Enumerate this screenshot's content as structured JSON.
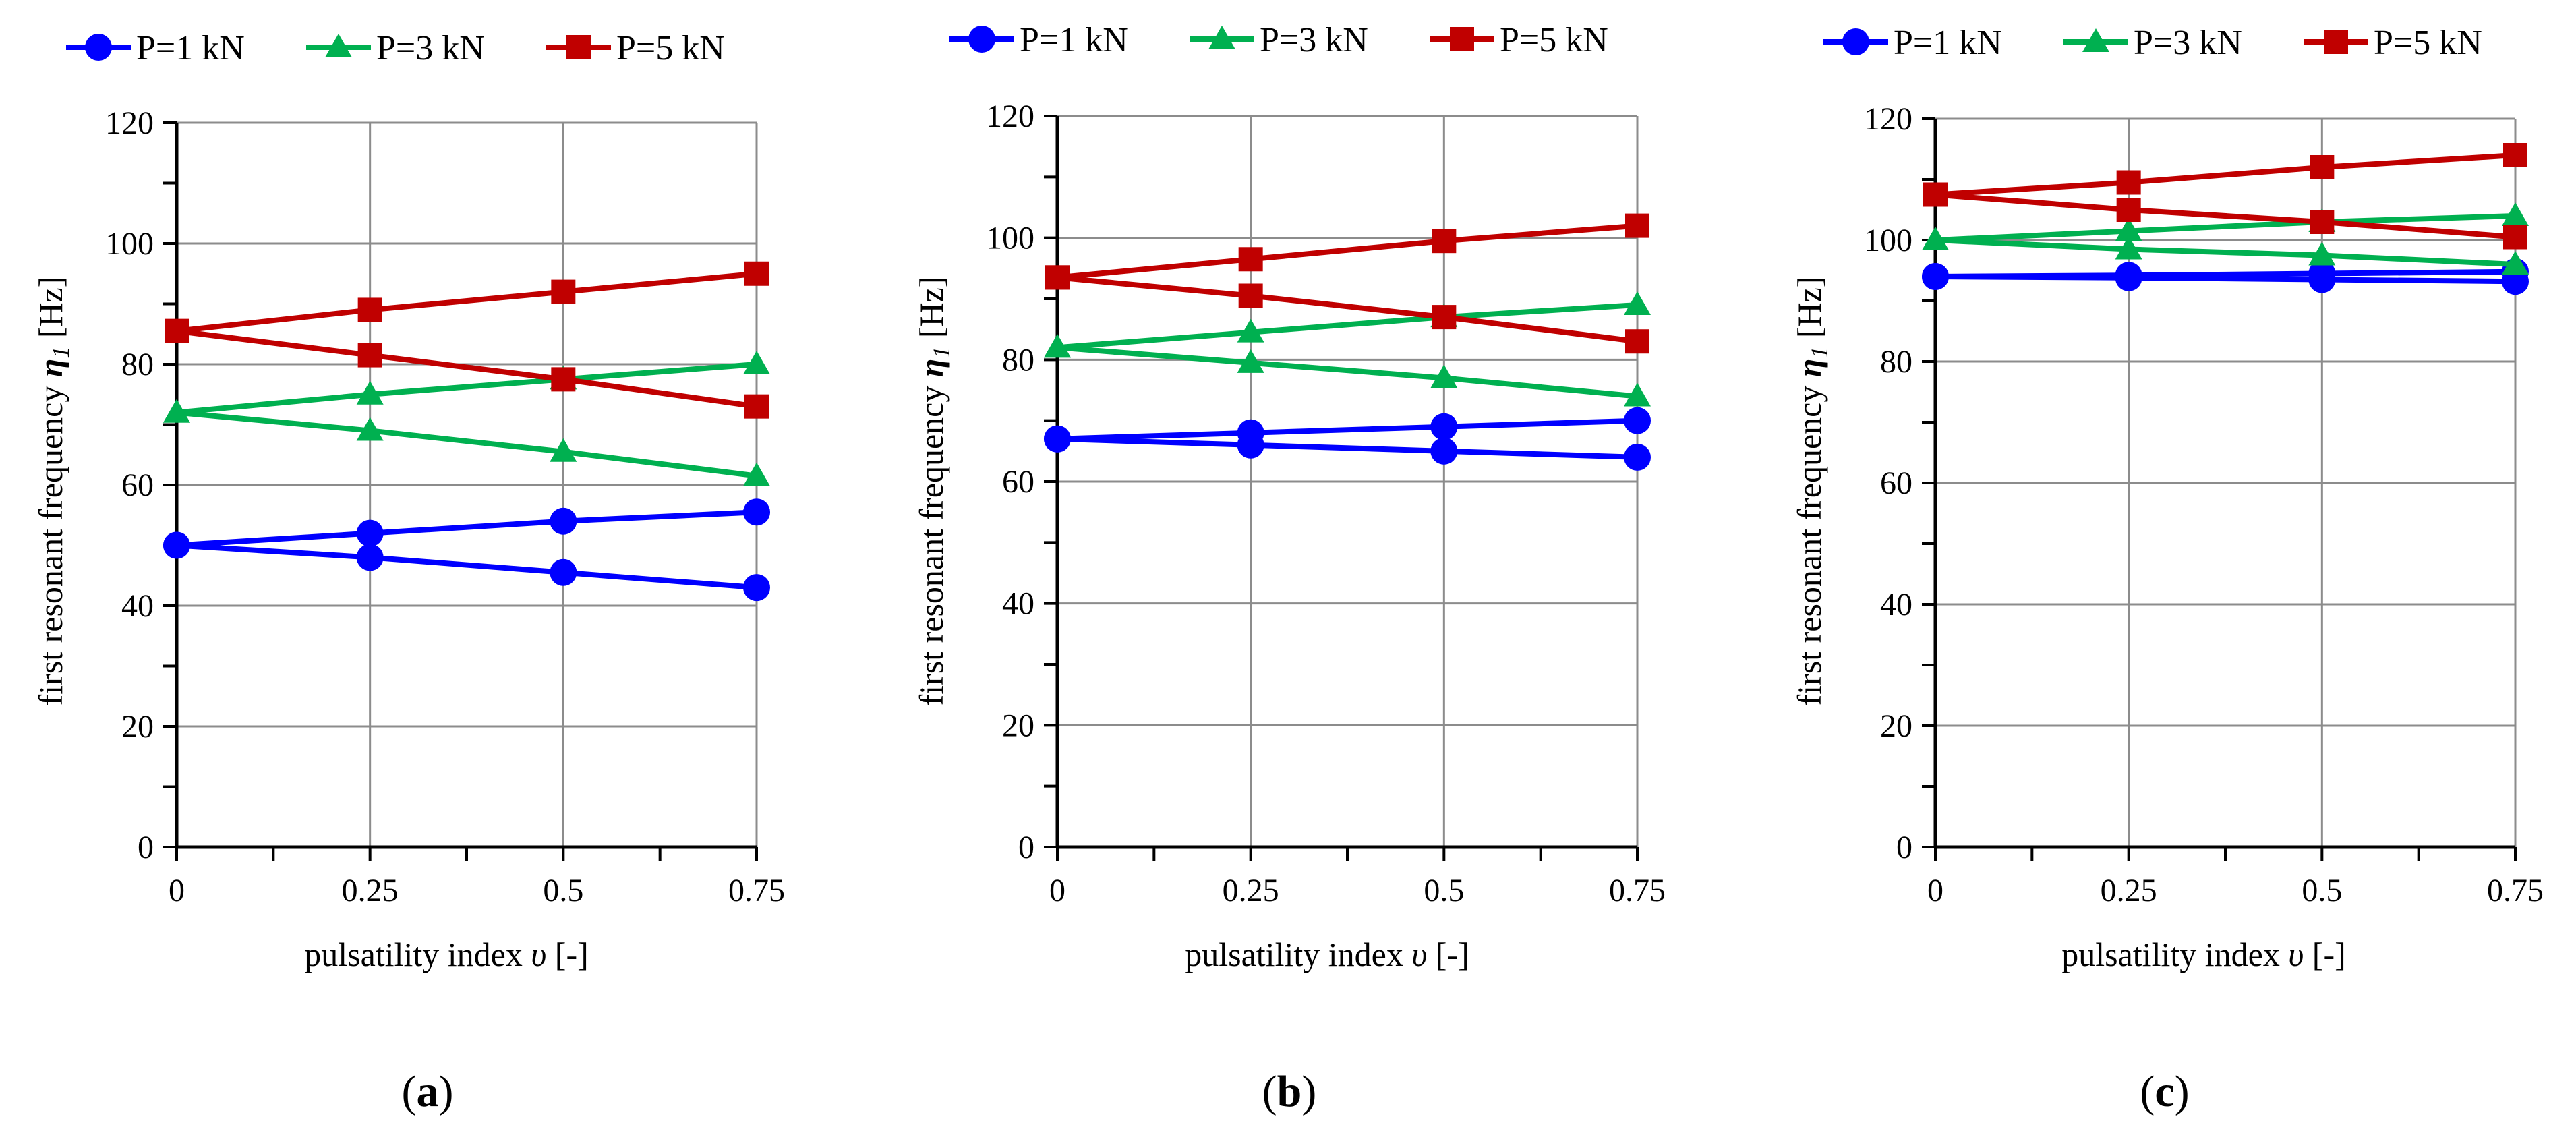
{
  "legend": [
    {
      "label": "P=1 kN",
      "color": "#0000ff",
      "marker": "circle"
    },
    {
      "label": "P=3 kN",
      "color": "#00b050",
      "marker": "triangle"
    },
    {
      "label": "P=5 kN",
      "color": "#c00000",
      "marker": "square"
    }
  ],
  "panels": [
    {
      "open": "(",
      "letter": "a",
      "close": ")"
    },
    {
      "open": "(",
      "letter": "b",
      "close": ")"
    },
    {
      "open": "(",
      "letter": "c",
      "close": ")"
    }
  ],
  "axis_text": {
    "ylabel_main": "first resonant frequency ",
    "ylabel_symbol": "η",
    "ylabel_sub": "1",
    "ylabel_unit": " [Hz]",
    "xlabel_main": "pulsatility index  ",
    "xlabel_symbol": "υ",
    "xlabel_unit": " [-]"
  },
  "chart_data": [
    {
      "type": "line",
      "panel": "a",
      "x": [
        0,
        0.25,
        0.5,
        0.75
      ],
      "xticks": [
        "0",
        "0.25",
        "0.5",
        "0.75"
      ],
      "yticks": [
        "0",
        "20",
        "40",
        "60",
        "80",
        "100",
        "120"
      ],
      "ylim": [
        0,
        120
      ],
      "grid": true,
      "series": [
        {
          "name": "P=1 kN",
          "values": [
            50,
            52,
            54,
            55.5
          ]
        },
        {
          "name": "P=1 kN",
          "values": [
            50,
            48,
            45.5,
            43
          ]
        },
        {
          "name": "P=3 kN",
          "values": [
            72,
            75,
            77.5,
            80
          ]
        },
        {
          "name": "P=3 kN",
          "values": [
            72,
            69,
            65.5,
            61.5
          ]
        },
        {
          "name": "P=5 kN",
          "values": [
            85.5,
            89,
            92,
            95
          ]
        },
        {
          "name": "P=5 kN",
          "values": [
            85.5,
            81.5,
            77.5,
            73
          ]
        }
      ]
    },
    {
      "type": "line",
      "panel": "b",
      "x": [
        0,
        0.25,
        0.5,
        0.75
      ],
      "xticks": [
        "0",
        "0.25",
        "0.5",
        "0.75"
      ],
      "yticks": [
        "0",
        "20",
        "40",
        "60",
        "80",
        "100",
        "120"
      ],
      "ylim": [
        0,
        120
      ],
      "grid": true,
      "series": [
        {
          "name": "P=1 kN",
          "values": [
            67,
            68,
            69,
            70
          ]
        },
        {
          "name": "P=1 kN",
          "values": [
            67,
            66,
            65,
            64
          ]
        },
        {
          "name": "P=3 kN",
          "values": [
            82,
            84.5,
            87,
            89
          ]
        },
        {
          "name": "P=3 kN",
          "values": [
            82,
            79.5,
            77,
            74
          ]
        },
        {
          "name": "P=5 kN",
          "values": [
            93.5,
            96.5,
            99.5,
            102
          ]
        },
        {
          "name": "P=5 kN",
          "values": [
            93.5,
            90.5,
            87,
            83
          ]
        }
      ]
    },
    {
      "type": "line",
      "panel": "c",
      "x": [
        0,
        0.25,
        0.5,
        0.75
      ],
      "xticks": [
        "0",
        "0.25",
        "0.5",
        "0.75"
      ],
      "yticks": [
        "0",
        "20",
        "40",
        "60",
        "80",
        "100",
        "120"
      ],
      "ylim": [
        0,
        120
      ],
      "grid": true,
      "series": [
        {
          "name": "P=1 kN",
          "values": [
            94,
            94.2,
            94.5,
            94.8
          ]
        },
        {
          "name": "P=1 kN",
          "values": [
            94,
            93.8,
            93.5,
            93.2
          ]
        },
        {
          "name": "P=3 kN",
          "values": [
            100,
            101.5,
            103,
            104
          ]
        },
        {
          "name": "P=3 kN",
          "values": [
            100,
            98.5,
            97.5,
            96
          ]
        },
        {
          "name": "P=5 kN",
          "values": [
            107.5,
            109.5,
            112,
            114
          ]
        },
        {
          "name": "P=5 kN",
          "values": [
            107.5,
            105,
            103,
            100.5
          ]
        }
      ]
    }
  ]
}
